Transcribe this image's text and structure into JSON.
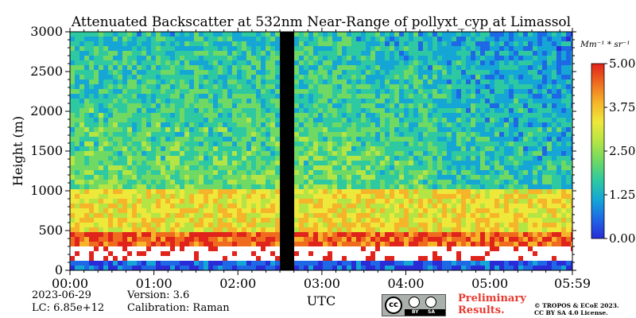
{
  "chart_data": {
    "type": "heatmap",
    "title": "Attenuated Backscatter at 532nm Near-Range of pollyxt_cyp at Limassol",
    "xlabel": "UTC",
    "ylabel": "Height (m)",
    "x_tick_labels": [
      "00:00",
      "01:00",
      "02:00",
      "03:00",
      "04:00",
      "05:00",
      "05:59"
    ],
    "x_tick_values_hours": [
      0,
      1,
      2,
      3,
      4,
      5,
      5.983
    ],
    "xlim_hours": [
      0,
      5.983
    ],
    "y_ticks": [
      0,
      500,
      1000,
      1500,
      2000,
      2500,
      3000
    ],
    "ylim": [
      0,
      3000
    ],
    "colorbar": {
      "unit_label": "Mm⁻¹ * sr⁻¹",
      "ticks": [
        "0.00",
        "1.25",
        "2.50",
        "3.75",
        "5.00"
      ],
      "range": [
        0,
        5.0
      ],
      "colormap": [
        "#2a2bd6",
        "#1e68e6",
        "#15a6d6",
        "#2ec9a0",
        "#6fd964",
        "#b5e545",
        "#eee83a",
        "#f6b42a",
        "#ef6c1f",
        "#e0231b"
      ]
    },
    "data_gap_hours": [
      2.5,
      2.67
    ],
    "layers": [
      {
        "name": "surface",
        "height_range_m": [
          0,
          100
        ],
        "level": 0.4
      },
      {
        "name": "saturated",
        "height_range_m": [
          100,
          300
        ],
        "level": 6.0
      },
      {
        "name": "boundary_layer_top",
        "height_range_m": [
          300,
          500
        ],
        "level": 4.6
      },
      {
        "name": "aerosol_layer",
        "height_range_m": [
          500,
          1000
        ],
        "level": 3.4
      },
      {
        "name": "free_troposphere",
        "height_range_m": [
          1000,
          3000
        ],
        "level": 2.2
      }
    ]
  },
  "meta": {
    "date": "2023-06-29",
    "lc": "LC: 6.85e+12",
    "version": "Version: 3.6",
    "calibration": "Calibration: Raman"
  },
  "license": {
    "preliminary_line1": "Preliminary",
    "preliminary_line2": "Results.",
    "copyright_line1": "© TROPOS & ECoE 2023.",
    "copyright_line2": "CC BY SA 4.0 License.",
    "badge_by": "BY",
    "badge_sa": "SA",
    "badge_cc": "cc"
  }
}
